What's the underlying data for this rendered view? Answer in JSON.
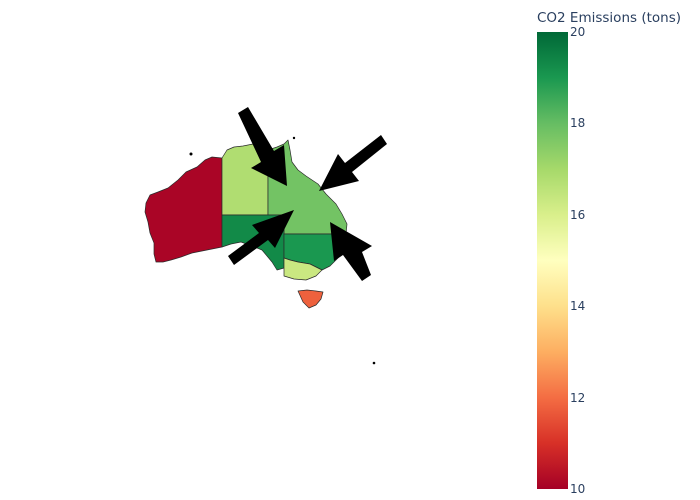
{
  "colorbar": {
    "title": "CO2 Emissions (tons)",
    "min": 10,
    "max": 20,
    "tick_values": [
      10,
      12,
      14,
      16,
      18,
      20
    ],
    "tick_labels": [
      "10",
      "12",
      "14",
      "16",
      "18",
      "20"
    ],
    "colorscale": [
      "#a50026",
      "#d73027",
      "#f46d43",
      "#fdae61",
      "#fee08b",
      "#ffffbf",
      "#d9ef8b",
      "#a6d96a",
      "#66bd63",
      "#1a9850",
      "#006837"
    ]
  },
  "regions": [
    {
      "name": "Western Australia",
      "value": 10.1
    },
    {
      "name": "Northern Territory",
      "value": 16.8
    },
    {
      "name": "Queensland",
      "value": 17.8
    },
    {
      "name": "South Australia",
      "value": 19.3
    },
    {
      "name": "New South Wales",
      "value": 19.0
    },
    {
      "name": "Victoria",
      "value": 16.3
    },
    {
      "name": "Tasmania",
      "value": 11.8
    }
  ],
  "annotations": {
    "arrow_count": 4,
    "arrow_color": "#000000"
  }
}
